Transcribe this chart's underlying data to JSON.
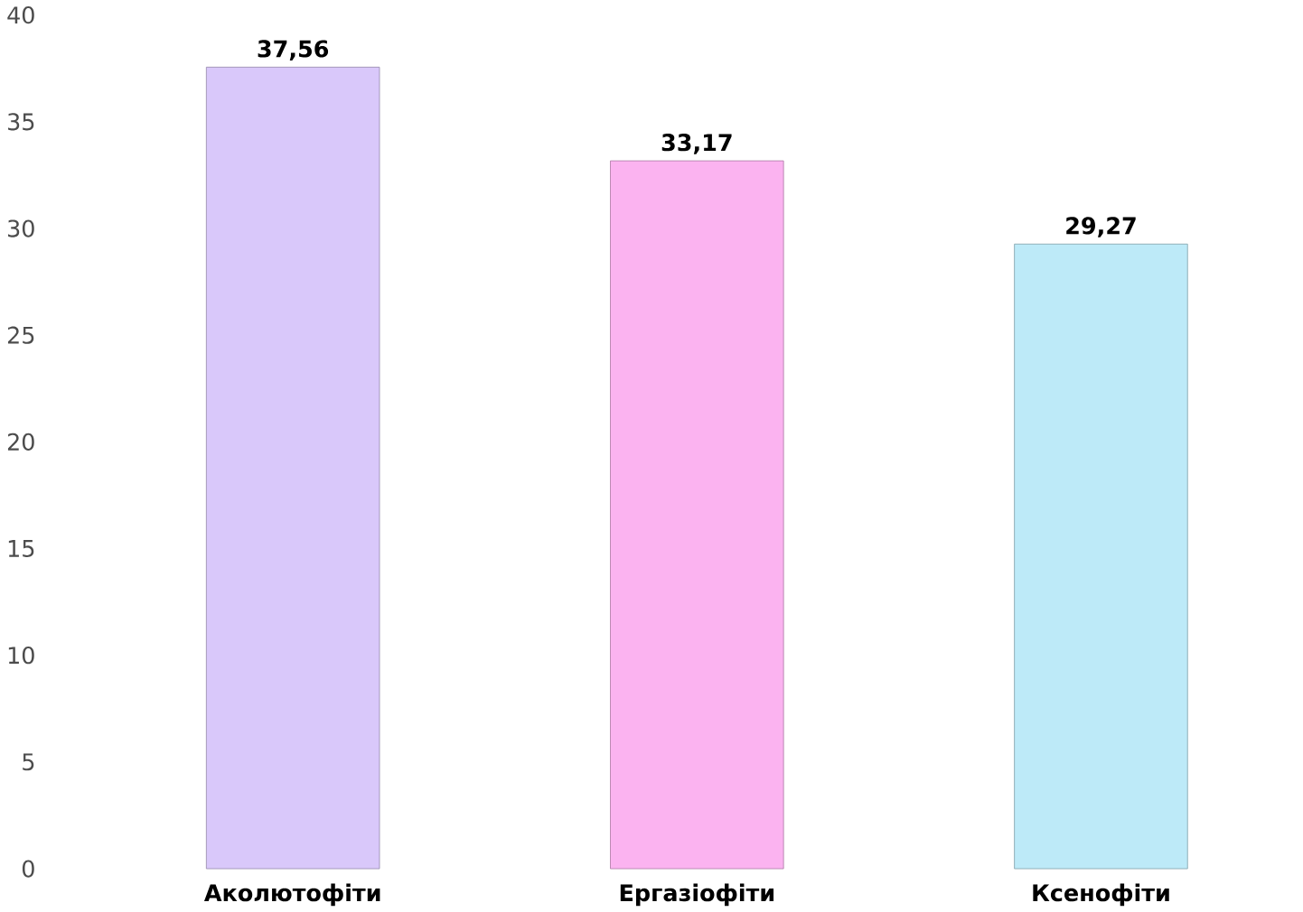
{
  "chart_data": {
    "type": "bar",
    "categories": [
      "Аколютофіти",
      "Ергазіофіти",
      "Ксенофіти"
    ],
    "values": [
      37.56,
      33.17,
      29.27
    ],
    "colors": [
      "#d9c8fa",
      "#fbb3f0",
      "#bdeaf8"
    ],
    "value_labels": [
      "37,56",
      "33,17",
      "29,27"
    ],
    "ylim": [
      0,
      40
    ],
    "yticks": [
      0,
      5,
      10,
      15,
      20,
      25,
      30,
      35,
      40
    ],
    "grid": false
  }
}
